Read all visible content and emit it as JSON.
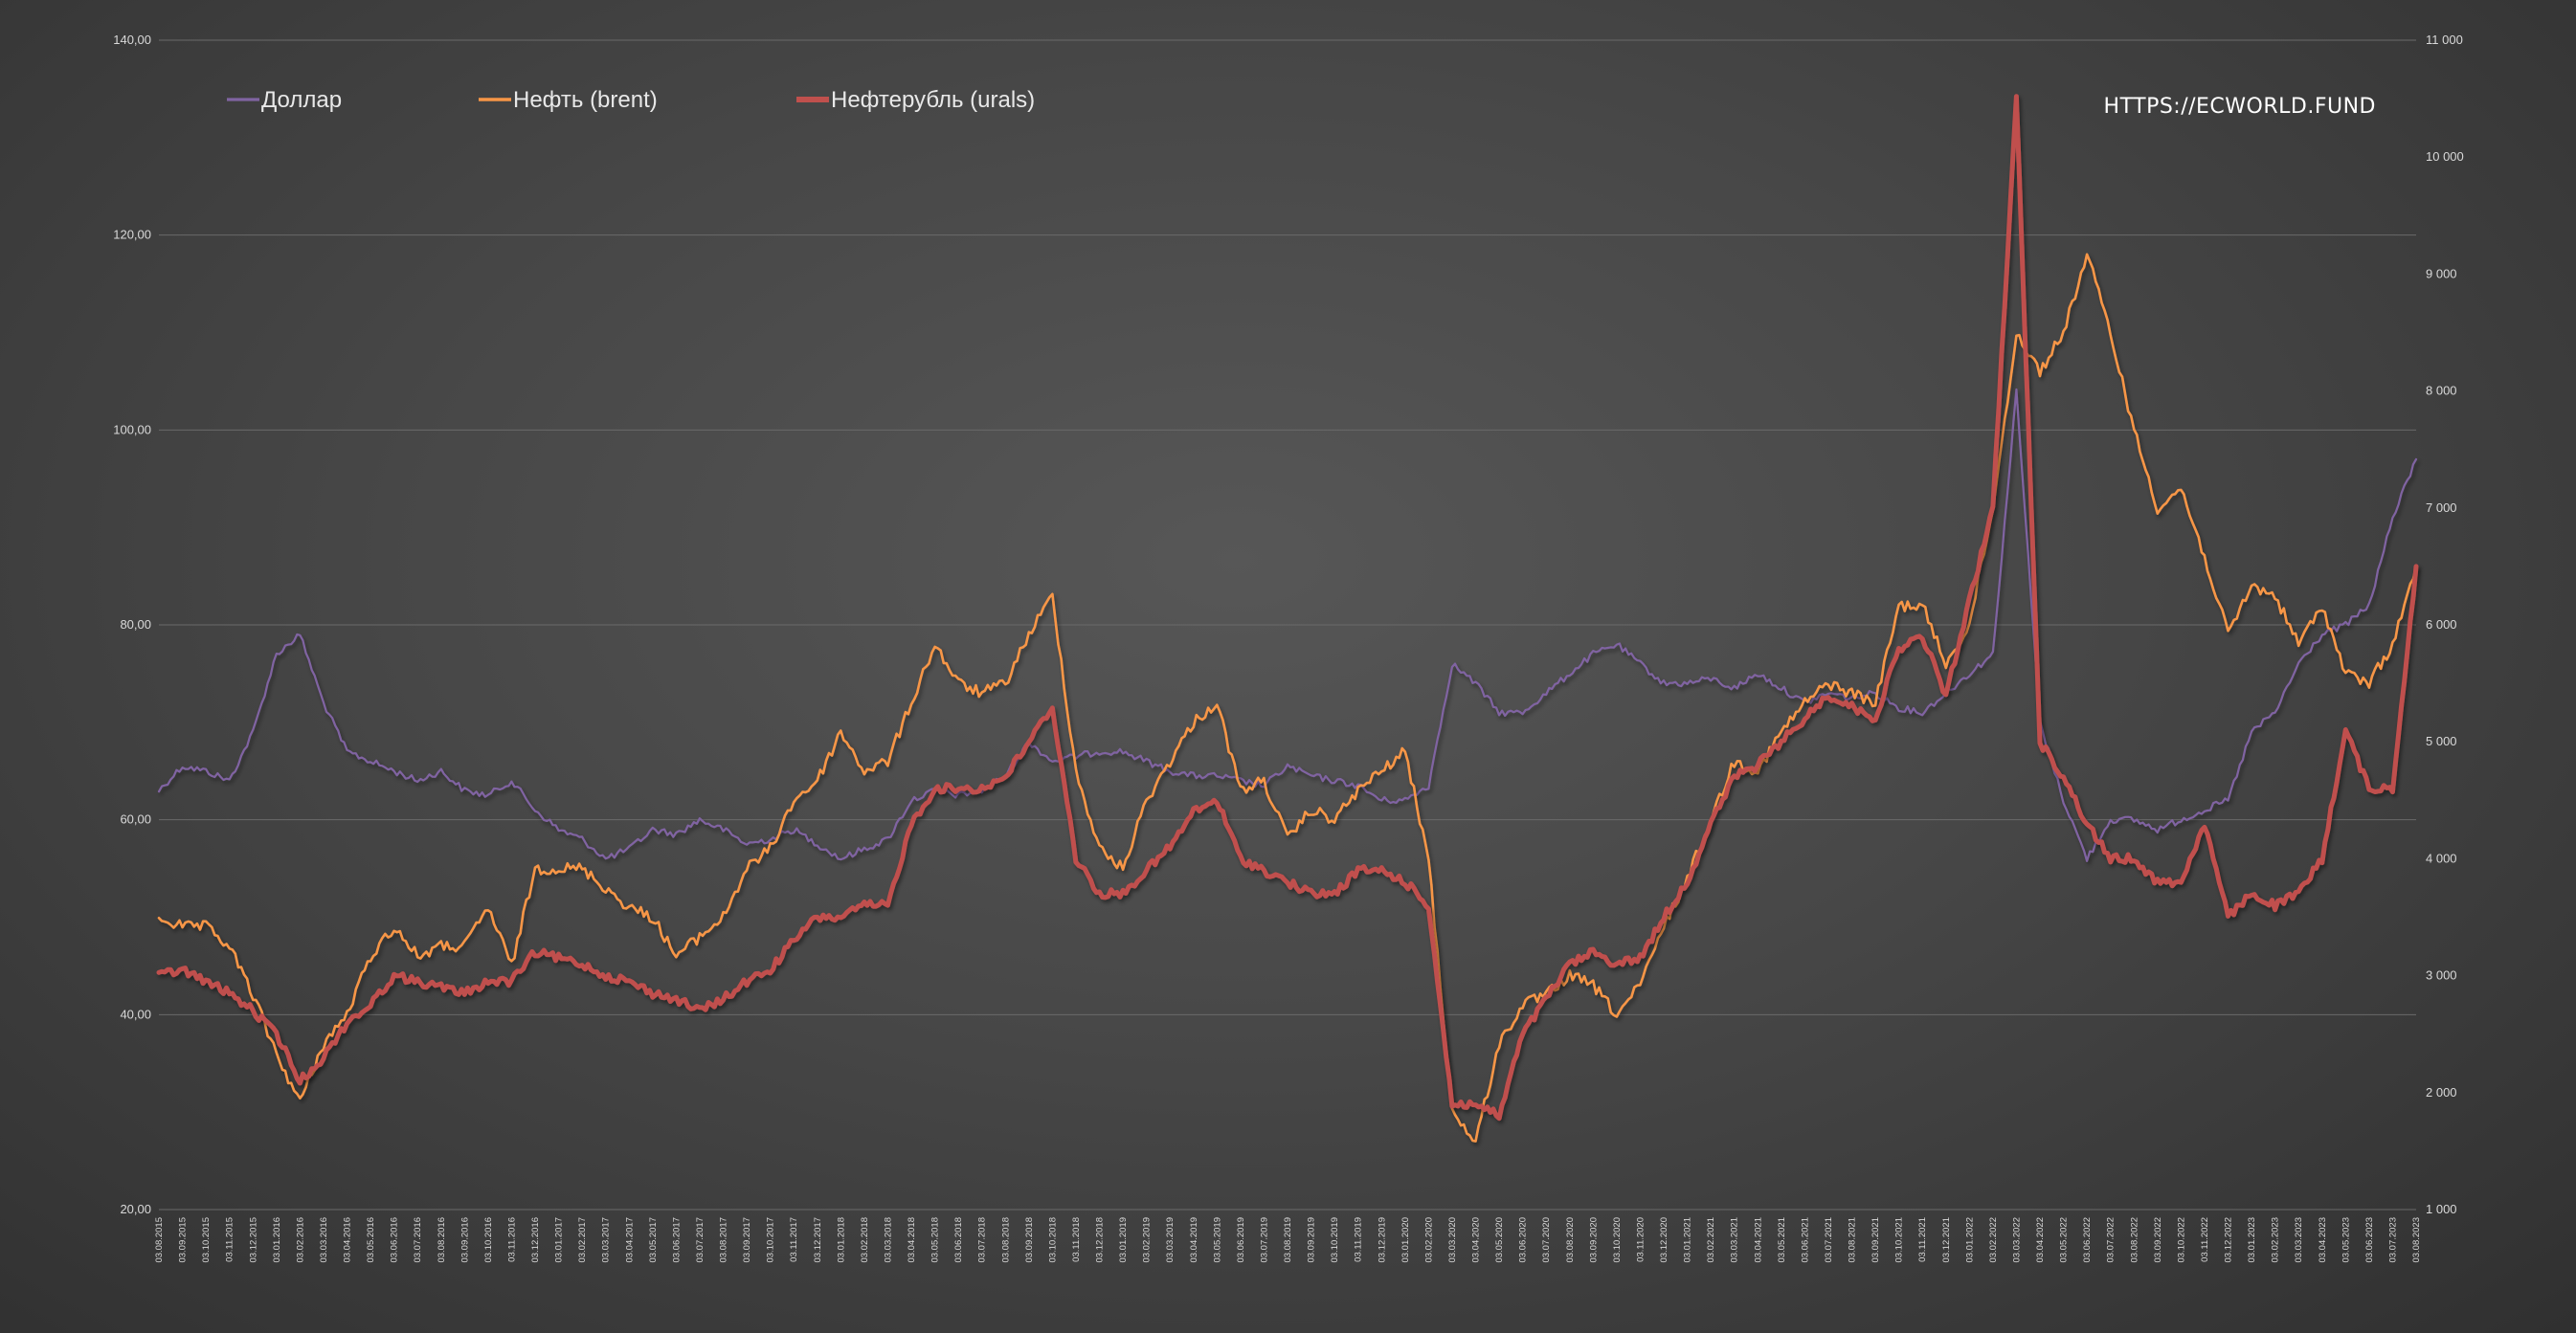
{
  "watermark": "HTTPS://ECWORLD.FUND",
  "chart_data": {
    "type": "line",
    "title": "",
    "xlabel": "",
    "ylabel": "",
    "ylim_left": [
      20,
      140
    ],
    "ylim_right": [
      1000,
      11000
    ],
    "y_ticks_left": [
      "20,00",
      "40,00",
      "60,00",
      "80,00",
      "100,00",
      "120,00",
      "140,00"
    ],
    "y_ticks_right": [
      "1 000",
      "2 000",
      "3 000",
      "4 000",
      "5 000",
      "6 000",
      "7 000",
      "8 000",
      "9 000",
      "10 000",
      "11 000"
    ],
    "grid": "horizontal",
    "legend_position": "top-left",
    "x_labels": [
      "03.08.2015",
      "03.09.2015",
      "03.10.2015",
      "03.11.2015",
      "03.12.2015",
      "03.01.2016",
      "03.02.2016",
      "03.03.2016",
      "03.04.2016",
      "03.05.2016",
      "03.06.2016",
      "03.07.2016",
      "03.08.2016",
      "03.09.2016",
      "03.10.2016",
      "03.11.2016",
      "03.12.2016",
      "03.01.2017",
      "03.02.2017",
      "03.03.2017",
      "03.04.2017",
      "03.05.2017",
      "03.06.2017",
      "03.07.2017",
      "03.08.2017",
      "03.09.2017",
      "03.10.2017",
      "03.11.2017",
      "03.12.2017",
      "03.01.2018",
      "03.02.2018",
      "03.03.2018",
      "03.04.2018",
      "03.05.2018",
      "03.06.2018",
      "03.07.2018",
      "03.08.2018",
      "03.09.2018",
      "03.10.2018",
      "03.11.2018",
      "03.12.2018",
      "03.01.2019",
      "03.02.2019",
      "03.03.2019",
      "03.04.2019",
      "03.05.2019",
      "03.06.2019",
      "03.07.2019",
      "03.08.2019",
      "03.09.2019",
      "03.10.2019",
      "03.11.2019",
      "03.12.2019",
      "03.01.2020",
      "03.02.2020",
      "03.03.2020",
      "03.04.2020",
      "03.05.2020",
      "03.06.2020",
      "03.07.2020",
      "03.08.2020",
      "03.09.2020",
      "03.10.2020",
      "03.11.2020",
      "03.12.2020",
      "03.01.2021",
      "03.02.2021",
      "03.03.2021",
      "03.04.2021",
      "03.05.2021",
      "03.06.2021",
      "03.07.2021",
      "03.08.2021",
      "03.09.2021",
      "03.10.2021",
      "03.11.2021",
      "03.12.2021",
      "03.01.2022",
      "03.02.2022",
      "03.03.2022",
      "03.04.2022",
      "03.05.2022",
      "03.06.2022",
      "03.07.2022",
      "03.08.2022",
      "03.09.2022",
      "03.10.2022",
      "03.11.2022",
      "03.12.2022",
      "03.01.2023",
      "03.02.2023",
      "03.03.2023",
      "03.04.2023",
      "03.05.2023",
      "03.06.2023",
      "03.07.2023",
      "03.08.2023"
    ],
    "series": [
      {
        "name": "Доллар",
        "axis": "left",
        "color": "#8064a2",
        "values": [
          63,
          65.5,
          65,
          64,
          69,
          77,
          79,
          72,
          67,
          66,
          65,
          64,
          65,
          63,
          62.5,
          64,
          61,
          59,
          58,
          56,
          57,
          59,
          58.5,
          60,
          59,
          57.5,
          58,
          59,
          57.5,
          56,
          57,
          58,
          62,
          63,
          62.5,
          63,
          64.5,
          68,
          66,
          66.5,
          67,
          67,
          66,
          65,
          64.5,
          64.5,
          64,
          63.5,
          65.5,
          64.5,
          64,
          63.5,
          62,
          62,
          63.5,
          76,
          74,
          71,
          71,
          73,
          75,
          77,
          78,
          76,
          74,
          74,
          74.5,
          73.5,
          75,
          73.5,
          72,
          73,
          72.5,
          73,
          71.5,
          71,
          73,
          75,
          77,
          104,
          70,
          62,
          56,
          60,
          60,
          59,
          60,
          61,
          62,
          69,
          71,
          76,
          79,
          80,
          82,
          91,
          97
        ]
      },
      {
        "name": "Нефть (brent)",
        "axis": "left",
        "color": "#f79646",
        "values": [
          50,
          49,
          49,
          47,
          42,
          36,
          31,
          37,
          40,
          46,
          49,
          46,
          47,
          47,
          51,
          45,
          55,
          55,
          55,
          53,
          51,
          50,
          46,
          48,
          50,
          55,
          57,
          62,
          64,
          69,
          65,
          66,
          72,
          78,
          74,
          73,
          74,
          79,
          83,
          65,
          57,
          55,
          62,
          66,
          70,
          72,
          63,
          64,
          58,
          61,
          60,
          63,
          65,
          67,
          56,
          30,
          27,
          37,
          41,
          42,
          44,
          43,
          40,
          43,
          49,
          54,
          60,
          66,
          65,
          69,
          72,
          74,
          73,
          72,
          82,
          82,
          76,
          80,
          92,
          110,
          106,
          110,
          118,
          110,
          100,
          92,
          94,
          87,
          79,
          84,
          83,
          78,
          82,
          75,
          74,
          78,
          86
        ]
      },
      {
        "name": "Нефтерубль (urals)",
        "axis": "right",
        "color": "#c0504d",
        "values": [
          3000,
          3050,
          2950,
          2850,
          2700,
          2500,
          2100,
          2300,
          2600,
          2750,
          3000,
          2950,
          2900,
          2850,
          2950,
          2950,
          3200,
          3150,
          3100,
          3000,
          2950,
          2850,
          2800,
          2700,
          2800,
          2950,
          3050,
          3300,
          3500,
          3500,
          3600,
          3600,
          4300,
          4600,
          4600,
          4600,
          4700,
          5000,
          5300,
          4000,
          3700,
          3700,
          3900,
          4100,
          4400,
          4500,
          4000,
          3900,
          3800,
          3700,
          3700,
          3900,
          3900,
          3800,
          3600,
          1900,
          1900,
          1800,
          2500,
          2800,
          3100,
          3200,
          3100,
          3150,
          3500,
          3800,
          4300,
          4700,
          4800,
          5000,
          5200,
          5400,
          5300,
          5200,
          5800,
          5900,
          5400,
          6200,
          7000,
          10500,
          5000,
          4700,
          4300,
          4000,
          4000,
          3800,
          3800,
          4300,
          3500,
          3700,
          3600,
          3700,
          4000,
          5100,
          4600,
          4600,
          6500
        ]
      }
    ]
  }
}
